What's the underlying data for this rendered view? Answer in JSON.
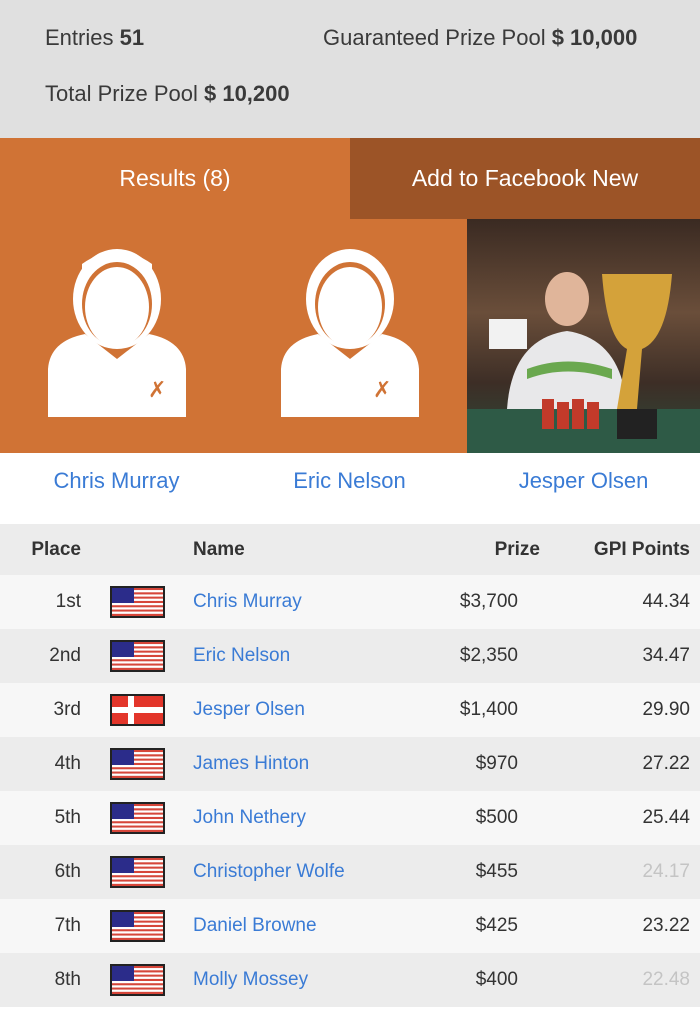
{
  "summary": {
    "entries_label": "Entries",
    "entries_value": "51",
    "guaranteed_label": "Guaranteed Prize Pool",
    "guaranteed_value": "$ 10,000",
    "total_label": "Total Prize Pool",
    "total_value": "$ 10,200"
  },
  "tabs": [
    {
      "label": "Results (8)",
      "active": true
    },
    {
      "label": "Add to Facebook New",
      "active": false
    }
  ],
  "colors": {
    "accent": "#d07335",
    "accent_dark": "#9c5427",
    "link": "#3a7bd5"
  },
  "podium": [
    {
      "name": "Chris Murray",
      "image": "avatar-placeholder"
    },
    {
      "name": "Eric Nelson",
      "image": "avatar-placeholder"
    },
    {
      "name": "Jesper Olsen",
      "image": "photo-with-trophy"
    }
  ],
  "table": {
    "headers": {
      "place": "Place",
      "name": "Name",
      "prize": "Prize",
      "points": "GPI Points"
    },
    "rows": [
      {
        "place": "1st",
        "flag": "us",
        "name": "Chris Murray",
        "prize": "$3,700",
        "points": "44.34",
        "faded": false
      },
      {
        "place": "2nd",
        "flag": "us",
        "name": "Eric Nelson",
        "prize": "$2,350",
        "points": "34.47",
        "faded": false
      },
      {
        "place": "3rd",
        "flag": "dk",
        "name": "Jesper Olsen",
        "prize": "$1,400",
        "points": "29.90",
        "faded": false
      },
      {
        "place": "4th",
        "flag": "us",
        "name": "James Hinton",
        "prize": "$970",
        "points": "27.22",
        "faded": false
      },
      {
        "place": "5th",
        "flag": "us",
        "name": "John Nethery",
        "prize": "$500",
        "points": "25.44",
        "faded": false
      },
      {
        "place": "6th",
        "flag": "us",
        "name": "Christopher Wolfe",
        "prize": "$455",
        "points": "24.17",
        "faded": true
      },
      {
        "place": "7th",
        "flag": "us",
        "name": "Daniel Browne",
        "prize": "$425",
        "points": "23.22",
        "faded": false
      },
      {
        "place": "8th",
        "flag": "us",
        "name": "Molly Mossey",
        "prize": "$400",
        "points": "22.48",
        "faded": true
      }
    ]
  }
}
